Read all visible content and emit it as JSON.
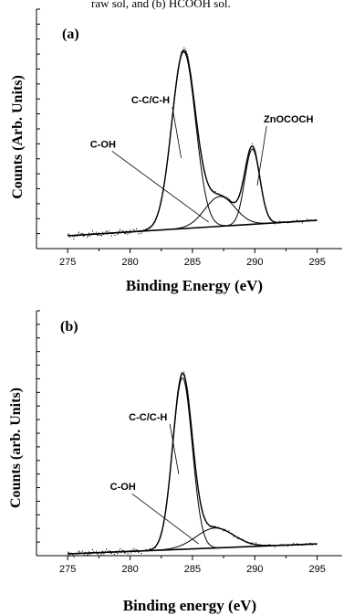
{
  "caption": "raw sol, and (b) HCOOH sol.",
  "chart_data": [
    {
      "type": "line",
      "panel_label": "(a)",
      "xlabel": "Binding Energy (eV)",
      "ylabel": "Counts (Arb. Units)",
      "xlim": [
        272.5,
        297
      ],
      "ylim": [
        0,
        1
      ],
      "x_ticks": [
        275,
        280,
        285,
        290,
        295
      ],
      "grid": false,
      "baseline": {
        "x": [
          275,
          295
        ],
        "y": [
          0.0,
          0.074
        ]
      },
      "series": [
        {
          "name": "C-C/C-H",
          "center": 284.3,
          "height": 0.84,
          "sigma": 0.95
        },
        {
          "name": "C-OH",
          "center": 287.2,
          "height": 0.142,
          "sigma": 1.2
        },
        {
          "name": "ZnOCOCH",
          "center": 289.8,
          "height": 0.358,
          "sigma": 0.6
        }
      ],
      "annotations": [
        {
          "text": "C-C/C-H",
          "x": 280.1,
          "y": 0.63,
          "target_x": 284.1,
          "target_y": 0.37
        },
        {
          "text": "C-OH",
          "x": 276.8,
          "y": 0.42,
          "target_x": 286.3,
          "target_y": 0.065
        },
        {
          "text": "ZnOCOCH",
          "x": 292.7,
          "y": 0.54,
          "target_x": 290.2,
          "target_y": 0.24
        }
      ]
    },
    {
      "type": "line",
      "panel_label": "(b)",
      "xlabel": "Binding energy (eV)",
      "ylabel": "Counts (arb. Units)",
      "xlim": [
        272.5,
        297
      ],
      "ylim": [
        0,
        1
      ],
      "x_ticks": [
        275,
        280,
        285,
        290,
        295
      ],
      "grid": false,
      "baseline": {
        "x": [
          275,
          295
        ],
        "y": [
          0.0,
          0.05
        ]
      },
      "series": [
        {
          "name": "C-C/C-H",
          "center": 284.2,
          "height": 0.86,
          "sigma": 0.78
        },
        {
          "name": "C-OH",
          "center": 286.8,
          "height": 0.1,
          "sigma": 1.5
        }
      ],
      "annotations": [
        {
          "text": "C-C/C-H",
          "x": 279.9,
          "y": 0.67,
          "target_x": 283.9,
          "target_y": 0.4
        },
        {
          "text": "C-OH",
          "x": 278.4,
          "y": 0.32,
          "target_x": 285.5,
          "target_y": 0.05
        }
      ]
    }
  ]
}
